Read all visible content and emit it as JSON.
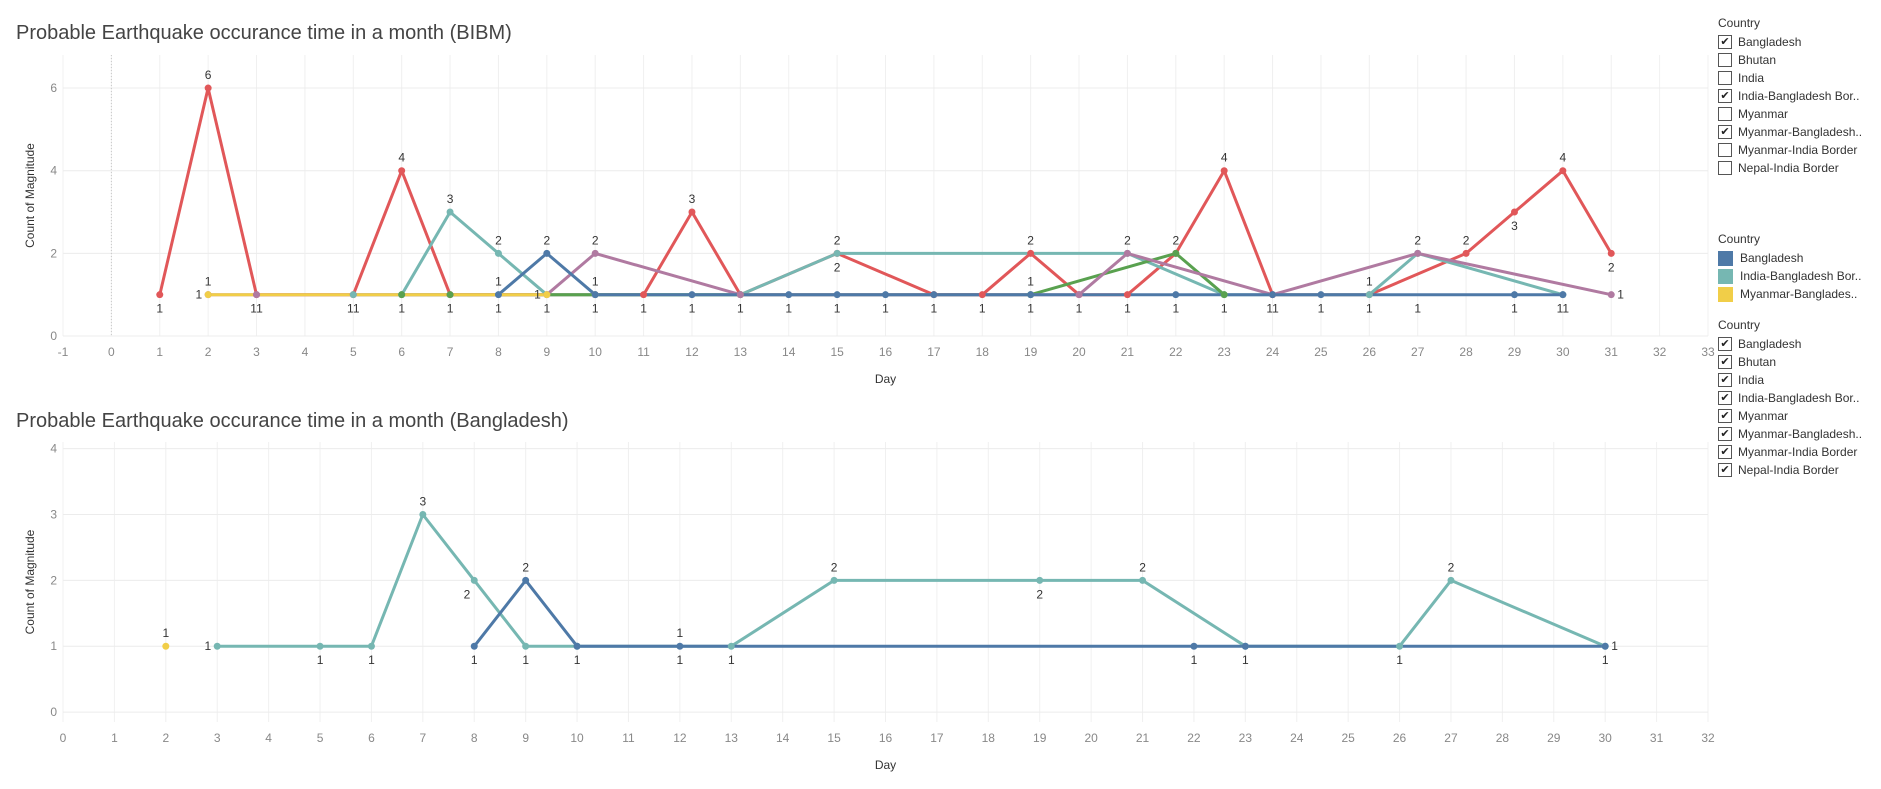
{
  "colors": {
    "Bangladesh": "#4e79a7",
    "India-Bangladesh Border": "#76b7b2",
    "Myanmar-Bangladesh Border": "#f1ce48",
    "red_series": "#e15759",
    "green_series": "#59a14f",
    "purple_series": "#b07aa1"
  },
  "filter_top": {
    "title": "Country",
    "items": [
      {
        "label": "Bangladesh",
        "checked": true
      },
      {
        "label": "Bhutan",
        "checked": false
      },
      {
        "label": "India",
        "checked": false
      },
      {
        "label": "India-Bangladesh Bor..",
        "checked": true
      },
      {
        "label": "Myanmar",
        "checked": false
      },
      {
        "label": "Myanmar-Bangladesh..",
        "checked": true
      },
      {
        "label": "Myanmar-India Border",
        "checked": false
      },
      {
        "label": "Nepal-India Border",
        "checked": false
      }
    ]
  },
  "color_legend": {
    "title": "Country",
    "items": [
      {
        "label": "Bangladesh",
        "color": "#4e79a7"
      },
      {
        "label": "India-Bangladesh Bor..",
        "color": "#76b7b2"
      },
      {
        "label": "Myanmar-Banglades..",
        "color": "#f1ce48"
      }
    ]
  },
  "filter_bottom": {
    "title": "Country",
    "items": [
      {
        "label": "Bangladesh",
        "checked": true
      },
      {
        "label": "Bhutan",
        "checked": true
      },
      {
        "label": "India",
        "checked": true
      },
      {
        "label": "India-Bangladesh Bor..",
        "checked": true
      },
      {
        "label": "Myanmar",
        "checked": true
      },
      {
        "label": "Myanmar-Bangladesh..",
        "checked": true
      },
      {
        "label": "Myanmar-India Border",
        "checked": true
      },
      {
        "label": "Nepal-India Border",
        "checked": true
      }
    ]
  },
  "chart_data": [
    {
      "type": "line",
      "title": "Probable Earthquake occurance time in a month (BIBM)",
      "xlabel": "Day",
      "ylabel": "Count of Magnitude",
      "xlim": [
        -1,
        33
      ],
      "ylim": [
        0,
        6.8
      ],
      "xticks": [
        -1,
        0,
        1,
        2,
        3,
        4,
        5,
        6,
        7,
        8,
        9,
        10,
        11,
        12,
        13,
        14,
        15,
        16,
        17,
        18,
        19,
        20,
        21,
        22,
        23,
        24,
        25,
        26,
        27,
        28,
        29,
        30,
        31,
        32,
        33
      ],
      "yticks": [
        0,
        2,
        4,
        6
      ],
      "grid": true,
      "series": [
        {
          "color": "#e15759",
          "points": [
            [
              1,
              1
            ],
            [
              2,
              6
            ],
            [
              3,
              1
            ],
            [
              5,
              1
            ],
            [
              6,
              4
            ],
            [
              7,
              1
            ],
            [
              10,
              1
            ],
            [
              11,
              1
            ],
            [
              12,
              3
            ],
            [
              13,
              1
            ],
            [
              15,
              2
            ],
            [
              17,
              1
            ],
            [
              18,
              1
            ],
            [
              19,
              2
            ],
            [
              20,
              1
            ],
            [
              21,
              1
            ],
            [
              22,
              2
            ],
            [
              23,
              4
            ],
            [
              24,
              1
            ],
            [
              26,
              1
            ],
            [
              28,
              2
            ],
            [
              29,
              3
            ],
            [
              30,
              4
            ],
            [
              31,
              2
            ]
          ]
        },
        {
          "color": "#76b7b2",
          "points": [
            [
              5,
              1
            ],
            [
              6,
              1
            ],
            [
              7,
              3
            ],
            [
              8,
              2
            ],
            [
              9,
              1
            ],
            [
              10,
              1
            ],
            [
              13,
              1
            ],
            [
              15,
              2
            ],
            [
              21,
              2
            ],
            [
              23,
              1
            ],
            [
              26,
              1
            ],
            [
              27,
              2
            ],
            [
              30,
              1
            ]
          ]
        },
        {
          "color": "#59a14f",
          "points": [
            [
              6,
              1
            ],
            [
              7,
              1
            ],
            [
              13,
              1
            ],
            [
              19,
              1
            ],
            [
              22,
              2
            ],
            [
              23,
              1
            ]
          ]
        },
        {
          "color": "#b07aa1",
          "points": [
            [
              2,
              1
            ],
            [
              3,
              1
            ],
            [
              9,
              1
            ],
            [
              10,
              2
            ],
            [
              13,
              1
            ],
            [
              20,
              1
            ],
            [
              21,
              2
            ],
            [
              24,
              1
            ],
            [
              27,
              2
            ],
            [
              31,
              1
            ]
          ]
        },
        {
          "color": "#4e79a7",
          "points": [
            [
              8,
              1
            ],
            [
              9,
              2
            ],
            [
              10,
              1
            ],
            [
              12,
              1
            ],
            [
              15,
              1
            ],
            [
              17,
              1
            ],
            [
              19,
              1
            ],
            [
              22,
              1
            ],
            [
              24,
              1
            ],
            [
              29,
              1
            ],
            [
              30,
              1
            ]
          ]
        },
        {
          "color": "#f1ce48",
          "points": [
            [
              2,
              1
            ],
            [
              9,
              1
            ]
          ]
        }
      ],
      "data_labels": [
        {
          "x": 2,
          "y": 6,
          "text": "6",
          "pos": "above"
        },
        {
          "x": 6,
          "y": 4,
          "text": "4",
          "pos": "above"
        },
        {
          "x": 7,
          "y": 3,
          "text": "3",
          "pos": "above"
        },
        {
          "x": 8,
          "y": 2,
          "text": "2",
          "pos": "above"
        },
        {
          "x": 9,
          "y": 2,
          "text": "2",
          "pos": "above"
        },
        {
          "x": 10,
          "y": 2,
          "text": "2",
          "pos": "above"
        },
        {
          "x": 12,
          "y": 3,
          "text": "3",
          "pos": "above"
        },
        {
          "x": 15,
          "y": 2,
          "text": "2",
          "pos": "above"
        },
        {
          "x": 15,
          "y": 2,
          "text": "2",
          "pos": "below"
        },
        {
          "x": 19,
          "y": 2,
          "text": "2",
          "pos": "above"
        },
        {
          "x": 21,
          "y": 2,
          "text": "2",
          "pos": "above"
        },
        {
          "x": 22,
          "y": 2,
          "text": "2",
          "pos": "above"
        },
        {
          "x": 23,
          "y": 4,
          "text": "4",
          "pos": "above"
        },
        {
          "x": 27,
          "y": 2,
          "text": "2",
          "pos": "above"
        },
        {
          "x": 28,
          "y": 2,
          "text": "2",
          "pos": "above"
        },
        {
          "x": 29,
          "y": 3,
          "text": "3",
          "pos": "below"
        },
        {
          "x": 30,
          "y": 4,
          "text": "4",
          "pos": "above"
        },
        {
          "x": 31,
          "y": 2,
          "text": "2",
          "pos": "below"
        },
        {
          "x": 2,
          "y": 1,
          "text": "1",
          "pos": "above"
        },
        {
          "x": 2,
          "y": 1,
          "text": "1",
          "pos": "left"
        },
        {
          "x": 8,
          "y": 1,
          "text": "1",
          "pos": "above"
        },
        {
          "x": 9,
          "y": 1,
          "text": "1",
          "pos": "left"
        },
        {
          "x": 10,
          "y": 1,
          "text": "1",
          "pos": "above"
        },
        {
          "x": 19,
          "y": 1,
          "text": "1",
          "pos": "above"
        },
        {
          "x": 26,
          "y": 1,
          "text": "1",
          "pos": "above"
        },
        {
          "x": 31,
          "y": 1,
          "text": "1",
          "pos": "right"
        },
        {
          "x": 1,
          "y": 1,
          "text": "1",
          "pos": "below"
        },
        {
          "x": 3,
          "y": 1,
          "text": "11",
          "pos": "below"
        },
        {
          "x": 5,
          "y": 1,
          "text": "11",
          "pos": "below"
        },
        {
          "x": 6,
          "y": 1,
          "text": "1",
          "pos": "below"
        },
        {
          "x": 7,
          "y": 1,
          "text": "1",
          "pos": "below"
        },
        {
          "x": 8,
          "y": 1,
          "text": "1",
          "pos": "below"
        },
        {
          "x": 9,
          "y": 1,
          "text": "1",
          "pos": "below"
        },
        {
          "x": 10,
          "y": 1,
          "text": "1",
          "pos": "below"
        },
        {
          "x": 11,
          "y": 1,
          "text": "1",
          "pos": "below"
        },
        {
          "x": 12,
          "y": 1,
          "text": "1",
          "pos": "below"
        },
        {
          "x": 13,
          "y": 1,
          "text": "1",
          "pos": "below"
        },
        {
          "x": 14,
          "y": 1,
          "text": "1",
          "pos": "below"
        },
        {
          "x": 15,
          "y": 1,
          "text": "1",
          "pos": "below"
        },
        {
          "x": 16,
          "y": 1,
          "text": "1",
          "pos": "below"
        },
        {
          "x": 17,
          "y": 1,
          "text": "1",
          "pos": "below"
        },
        {
          "x": 18,
          "y": 1,
          "text": "1",
          "pos": "below"
        },
        {
          "x": 19,
          "y": 1,
          "text": "1",
          "pos": "below"
        },
        {
          "x": 20,
          "y": 1,
          "text": "1",
          "pos": "below"
        },
        {
          "x": 21,
          "y": 1,
          "text": "1",
          "pos": "below"
        },
        {
          "x": 22,
          "y": 1,
          "text": "1",
          "pos": "below"
        },
        {
          "x": 23,
          "y": 1,
          "text": "1",
          "pos": "below"
        },
        {
          "x": 24,
          "y": 1,
          "text": "11",
          "pos": "below"
        },
        {
          "x": 25,
          "y": 1,
          "text": "1",
          "pos": "below"
        },
        {
          "x": 26,
          "y": 1,
          "text": "1",
          "pos": "below"
        },
        {
          "x": 27,
          "y": 1,
          "text": "1",
          "pos": "below"
        },
        {
          "x": 29,
          "y": 1,
          "text": "1",
          "pos": "below"
        },
        {
          "x": 30,
          "y": 1,
          "text": "11",
          "pos": "below"
        }
      ],
      "extra_points": [
        [
          14,
          1
        ],
        [
          16,
          1
        ],
        [
          25,
          1
        ]
      ]
    },
    {
      "type": "line",
      "title": "Probable Earthquake occurance time in a month (Bangladesh)",
      "xlabel": "Day",
      "ylabel": "Count of Magnitude",
      "xlim": [
        0,
        32
      ],
      "ylim": [
        -0.15,
        4.1
      ],
      "xticks": [
        0,
        1,
        2,
        3,
        4,
        5,
        6,
        7,
        8,
        9,
        10,
        11,
        12,
        13,
        14,
        15,
        16,
        17,
        18,
        19,
        20,
        21,
        22,
        23,
        24,
        25,
        26,
        27,
        28,
        29,
        30,
        31,
        32
      ],
      "yticks": [
        0,
        1,
        2,
        3,
        4
      ],
      "grid": true,
      "series": [
        {
          "name": "India-Bangladesh Bor..",
          "color": "#76b7b2",
          "points": [
            [
              3,
              1
            ],
            [
              5,
              1
            ],
            [
              6,
              1
            ],
            [
              7,
              3
            ],
            [
              8,
              2
            ],
            [
              9,
              1
            ],
            [
              10,
              1
            ],
            [
              13,
              1
            ],
            [
              15,
              2
            ],
            [
              19,
              2
            ],
            [
              21,
              2
            ],
            [
              23,
              1
            ],
            [
              26,
              1
            ],
            [
              27,
              2
            ],
            [
              30,
              1
            ]
          ]
        },
        {
          "name": "Bangladesh",
          "color": "#4e79a7",
          "points": [
            [
              8,
              1
            ],
            [
              9,
              2
            ],
            [
              10,
              1
            ],
            [
              12,
              1
            ],
            [
              22,
              1
            ],
            [
              23,
              1
            ],
            [
              30,
              1
            ]
          ]
        },
        {
          "name": "Myanmar-Banglades..",
          "color": "#f1ce48",
          "points": [
            [
              2,
              1
            ]
          ]
        }
      ],
      "data_labels": [
        {
          "x": 2,
          "y": 1,
          "text": "1",
          "pos": "above"
        },
        {
          "x": 3,
          "y": 1,
          "text": "1",
          "pos": "left"
        },
        {
          "x": 5,
          "y": 1,
          "text": "1",
          "pos": "below"
        },
        {
          "x": 6,
          "y": 1,
          "text": "1",
          "pos": "below"
        },
        {
          "x": 7,
          "y": 3,
          "text": "3",
          "pos": "above"
        },
        {
          "x": 8,
          "y": 2,
          "text": "2",
          "pos": "belowleft"
        },
        {
          "x": 8,
          "y": 1,
          "text": "1",
          "pos": "below"
        },
        {
          "x": 9,
          "y": 2,
          "text": "2",
          "pos": "above"
        },
        {
          "x": 9,
          "y": 1,
          "text": "1",
          "pos": "below"
        },
        {
          "x": 10,
          "y": 1,
          "text": "1",
          "pos": "below"
        },
        {
          "x": 12,
          "y": 1,
          "text": "1",
          "pos": "above"
        },
        {
          "x": 12,
          "y": 1,
          "text": "1",
          "pos": "below"
        },
        {
          "x": 13,
          "y": 1,
          "text": "1",
          "pos": "below"
        },
        {
          "x": 15,
          "y": 2,
          "text": "2",
          "pos": "above"
        },
        {
          "x": 19,
          "y": 2,
          "text": "2",
          "pos": "below"
        },
        {
          "x": 21,
          "y": 2,
          "text": "2",
          "pos": "above"
        },
        {
          "x": 22,
          "y": 1,
          "text": "1",
          "pos": "below"
        },
        {
          "x": 23,
          "y": 1,
          "text": "1",
          "pos": "below"
        },
        {
          "x": 26,
          "y": 1,
          "text": "1",
          "pos": "below"
        },
        {
          "x": 27,
          "y": 2,
          "text": "2",
          "pos": "above"
        },
        {
          "x": 30,
          "y": 1,
          "text": "1",
          "pos": "below"
        },
        {
          "x": 30,
          "y": 1,
          "text": "1",
          "pos": "right"
        }
      ],
      "extra_points": []
    }
  ]
}
